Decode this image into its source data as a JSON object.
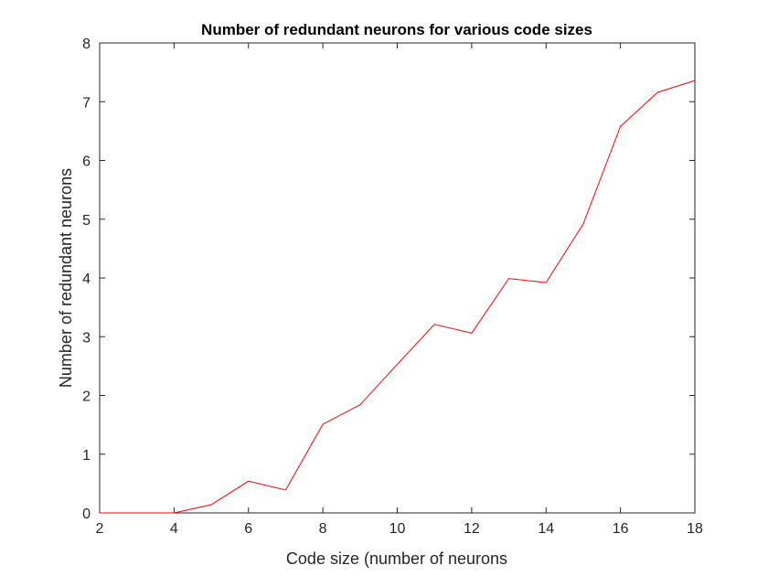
{
  "chart_data": {
    "type": "line",
    "title": "Number of redundant neurons for various code sizes",
    "xlabel": "Code size (number of neurons",
    "ylabel": "Number of redundant neurons",
    "xlim": [
      2,
      18
    ],
    "ylim": [
      0,
      8
    ],
    "xticks": [
      2,
      4,
      6,
      8,
      10,
      12,
      14,
      16,
      18
    ],
    "yticks": [
      0,
      1,
      2,
      3,
      4,
      5,
      6,
      7,
      8
    ],
    "grid": false,
    "legend": "none",
    "series": [
      {
        "color": "#ff0000",
        "x": [
          2,
          3,
          4,
          5,
          6,
          7,
          8,
          9,
          10,
          11,
          12,
          13,
          14,
          15,
          16,
          17,
          18
        ],
        "y": [
          0,
          0,
          0,
          0.14,
          0.54,
          0.39,
          1.51,
          1.84,
          2.53,
          3.21,
          3.06,
          3.99,
          3.92,
          4.92,
          6.58,
          7.16,
          7.36
        ]
      }
    ]
  }
}
